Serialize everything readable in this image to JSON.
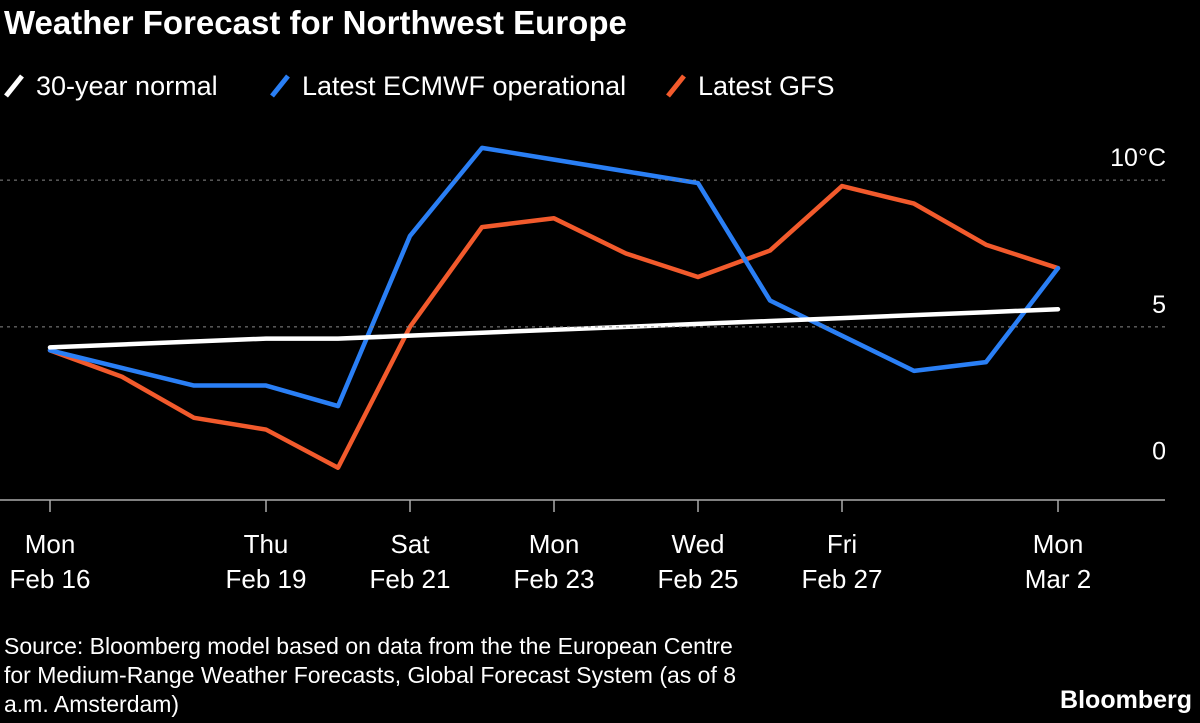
{
  "chart_data": {
    "type": "line",
    "title": "Weather Forecast for Northwest Europe",
    "categories": [
      "Feb 16",
      null,
      null,
      "Feb 19",
      null,
      "Feb 21",
      null,
      "Feb 23",
      null,
      "Feb 25",
      null,
      "Feb 27",
      null,
      null,
      "Mar 2"
    ],
    "weekdays": [
      "Mon",
      null,
      null,
      "Thu",
      null,
      "Sat",
      null,
      "Mon",
      null,
      "Wed",
      null,
      "Fri",
      null,
      null,
      "Mon"
    ],
    "series": [
      {
        "name": "30-year normal",
        "color": "#ffffff",
        "values": [
          4.3,
          4.4,
          4.5,
          4.6,
          4.6,
          4.7,
          4.8,
          4.9,
          5.0,
          5.1,
          5.2,
          5.3,
          5.4,
          5.5,
          5.6
        ]
      },
      {
        "name": "Latest ECMWF operational",
        "color": "#2a7ff5",
        "values": [
          4.2,
          3.6,
          3.0,
          3.0,
          2.3,
          8.1,
          11.1,
          10.7,
          10.3,
          9.9,
          5.9,
          4.7,
          3.5,
          3.8,
          7.0
        ]
      },
      {
        "name": "Latest GFS",
        "color": "#f25a2c",
        "values": [
          4.2,
          3.3,
          1.9,
          1.5,
          0.2,
          5.0,
          8.4,
          8.7,
          7.5,
          6.7,
          7.6,
          9.8,
          9.2,
          7.8,
          7.0
        ]
      }
    ],
    "ylim": [
      -0.9,
      11.3
    ],
    "yticks": [
      0,
      5,
      {
        "value": 10,
        "label": "10°C"
      }
    ],
    "grid": true,
    "source": [
      "Source: Bloomberg model based on data from the the European Centre",
      "for Medium-Range Weather Forecasts, Global Forecast System (as of 8",
      "a.m. Amsterdam)"
    ],
    "brand": "Bloomberg"
  }
}
